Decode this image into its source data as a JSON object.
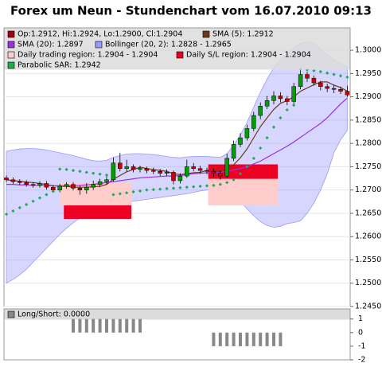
{
  "chart_data": {
    "type": "candlestick",
    "title": "Forex um Neun - Stundenchart vom 16.07.2010 09:13",
    "ylim": [
      1.245,
      1.3048
    ],
    "yticks": [
      {
        "value": 1.3,
        "label": "1.3000"
      },
      {
        "value": 1.295,
        "label": "1.2950"
      },
      {
        "value": 1.29,
        "label": "1.2900"
      },
      {
        "value": 1.285,
        "label": "1.2850"
      },
      {
        "value": 1.28,
        "label": "1.2800"
      },
      {
        "value": 1.275,
        "label": "1.2750"
      },
      {
        "value": 1.27,
        "label": "1.2700"
      },
      {
        "value": 1.265,
        "label": "1.2650"
      },
      {
        "value": 1.26,
        "label": "1.2600"
      },
      {
        "value": 1.255,
        "label": "1.2550"
      },
      {
        "value": 1.25,
        "label": "1.2500"
      },
      {
        "value": 1.245,
        "label": "1.2450"
      }
    ],
    "ohlc": {
      "name": "Op:1.2912, Hi:1.2924, Lo:1.2900, Cl:1.2904",
      "color": "#a00010",
      "up_color": "#00a000",
      "down_color": "#d00000",
      "open": [
        1.2726,
        1.2722,
        1.2718,
        1.2716,
        1.2712,
        1.271,
        1.2714,
        1.2706,
        1.27,
        1.2708,
        1.2712,
        1.2704,
        1.27,
        1.2706,
        1.2712,
        1.2718,
        1.2722,
        1.2758,
        1.2746,
        1.275,
        1.2744,
        1.2746,
        1.2742,
        1.274,
        1.2736,
        1.2738,
        1.272,
        1.273,
        1.275,
        1.2746,
        1.2742,
        1.274,
        1.2736,
        1.273,
        1.2768,
        1.2798,
        1.2812,
        1.2832,
        1.286,
        1.288,
        1.2892,
        1.2902,
        1.2896,
        1.289,
        1.2922,
        1.2948,
        1.294,
        1.293,
        1.2922,
        1.2918,
        1.2916,
        1.2912
      ],
      "high": [
        1.2731,
        1.2727,
        1.2723,
        1.2721,
        1.2717,
        1.2719,
        1.2719,
        1.2711,
        1.2713,
        1.2717,
        1.2717,
        1.2709,
        1.2715,
        1.272,
        1.2724,
        1.273,
        1.277,
        1.278,
        1.2765,
        1.2755,
        1.2752,
        1.275,
        1.2748,
        1.2745,
        1.2744,
        1.2742,
        1.2736,
        1.2765,
        1.2758,
        1.2752,
        1.2748,
        1.2746,
        1.2742,
        1.2778,
        1.2806,
        1.2822,
        1.284,
        1.2868,
        1.2888,
        1.2902,
        1.2912,
        1.291,
        1.2902,
        1.293,
        1.2958,
        1.2954,
        1.2946,
        1.2934,
        1.2928,
        1.2926,
        1.2922,
        1.2924
      ],
      "low": [
        1.2717,
        1.2713,
        1.2711,
        1.2707,
        1.2705,
        1.2705,
        1.2701,
        1.2695,
        1.2695,
        1.2703,
        1.2699,
        1.269,
        1.2692,
        1.27,
        1.2706,
        1.2712,
        1.2718,
        1.274,
        1.274,
        1.2738,
        1.2738,
        1.2736,
        1.2734,
        1.273,
        1.273,
        1.2712,
        1.2714,
        1.2726,
        1.274,
        1.2736,
        1.2734,
        1.2728,
        1.2722,
        1.2726,
        1.2762,
        1.2792,
        1.2806,
        1.2826,
        1.2852,
        1.2874,
        1.2884,
        1.2888,
        1.2882,
        1.2884,
        1.2916,
        1.2932,
        1.2924,
        1.2914,
        1.291,
        1.2908,
        1.2906,
        1.29
      ],
      "close": [
        1.2722,
        1.2718,
        1.2716,
        1.2712,
        1.271,
        1.2714,
        1.2706,
        1.27,
        1.2708,
        1.2712,
        1.2704,
        1.27,
        1.2706,
        1.2712,
        1.2718,
        1.2722,
        1.2758,
        1.2746,
        1.275,
        1.2744,
        1.2746,
        1.2742,
        1.274,
        1.2736,
        1.2738,
        1.272,
        1.273,
        1.275,
        1.2746,
        1.2742,
        1.274,
        1.2736,
        1.273,
        1.2768,
        1.2798,
        1.2812,
        1.2832,
        1.286,
        1.288,
        1.2892,
        1.2902,
        1.2896,
        1.289,
        1.2922,
        1.2948,
        1.294,
        1.293,
        1.2922,
        1.2918,
        1.2916,
        1.2912,
        1.2904
      ]
    },
    "series": [
      {
        "name": "SMA (5): 1.2912",
        "kind": "line",
        "color": "#6b3a1a",
        "values": [
          1.2722,
          1.272,
          1.2719,
          1.2717,
          1.2716,
          1.2714,
          1.2712,
          1.2709,
          1.2708,
          1.2708,
          1.2706,
          1.2706,
          1.2706,
          1.2707,
          1.2708,
          1.2712,
          1.2723,
          1.2731,
          1.2739,
          1.2744,
          1.2749,
          1.2746,
          1.2744,
          1.2742,
          1.274,
          1.2735,
          1.2733,
          1.2735,
          1.2737,
          1.2738,
          1.2742,
          1.2743,
          1.2739,
          1.2743,
          1.2754,
          1.2769,
          1.2788,
          1.2812,
          1.2836,
          1.2855,
          1.2873,
          1.2886,
          1.2892,
          1.29,
          1.2912,
          1.2919,
          1.2926,
          1.2932,
          1.2932,
          1.2925,
          1.292,
          1.2912
        ]
      },
      {
        "name": "SMA (20): 1.2897",
        "kind": "line",
        "color": "#9933dd",
        "values": [
          1.2712,
          1.2712,
          1.2711,
          1.2711,
          1.271,
          1.271,
          1.271,
          1.2709,
          1.2709,
          1.2709,
          1.2709,
          1.271,
          1.2711,
          1.2712,
          1.2714,
          1.2716,
          1.2718,
          1.272,
          1.2722,
          1.2724,
          1.2726,
          1.2727,
          1.2728,
          1.2729,
          1.273,
          1.273,
          1.2731,
          1.2733,
          1.2735,
          1.2736,
          1.2737,
          1.2737,
          1.2738,
          1.274,
          1.2743,
          1.2746,
          1.275,
          1.2756,
          1.2762,
          1.277,
          1.2778,
          1.2786,
          1.2794,
          1.2803,
          1.2813,
          1.2823,
          1.2833,
          1.2843,
          1.2855,
          1.287,
          1.2885,
          1.2897
        ]
      },
      {
        "name": "Bollinger (20, 2): 1.2828 - 1.2965",
        "kind": "band",
        "color": "#9999ff",
        "upper": [
          1.2783,
          1.2786,
          1.2788,
          1.2789,
          1.2789,
          1.2788,
          1.2786,
          1.2783,
          1.278,
          1.2777,
          1.2774,
          1.277,
          1.2766,
          1.2763,
          1.2762,
          1.2764,
          1.277,
          1.2774,
          1.2777,
          1.2778,
          1.2778,
          1.2777,
          1.2776,
          1.2774,
          1.2772,
          1.277,
          1.2769,
          1.2771,
          1.2772,
          1.2772,
          1.2772,
          1.2771,
          1.277,
          1.2778,
          1.2796,
          1.2818,
          1.2845,
          1.2878,
          1.291,
          1.2938,
          1.2962,
          1.298,
          1.2992,
          1.3005,
          1.3015,
          1.3018,
          1.3015,
          1.3002,
          1.299,
          1.298,
          1.2972,
          1.2965
        ],
        "lower": [
          1.25,
          1.2508,
          1.2518,
          1.253,
          1.2545,
          1.256,
          1.2575,
          1.259,
          1.2605,
          1.2618,
          1.263,
          1.264,
          1.265,
          1.2656,
          1.2662,
          1.2668,
          1.267,
          1.2672,
          1.2674,
          1.2676,
          1.2678,
          1.268,
          1.2682,
          1.2684,
          1.2686,
          1.2688,
          1.269,
          1.2692,
          1.2695,
          1.2698,
          1.27,
          1.2702,
          1.2705,
          1.27,
          1.269,
          1.2675,
          1.266,
          1.2645,
          1.2632,
          1.2624,
          1.262,
          1.2622,
          1.2628,
          1.263,
          1.2634,
          1.265,
          1.2672,
          1.27,
          1.2735,
          1.278,
          1.2808,
          1.2828
        ]
      },
      {
        "name": "Daily trading region: 1.2904 - 1.2904",
        "kind": "region",
        "color": "#ffcccc",
        "regions": [
          {
            "x": [
              8,
              18.7
            ],
            "y": [
              1.2667,
              1.2715
            ]
          },
          {
            "x": [
              30.2,
              40.6
            ],
            "y": [
              1.2667,
              1.2724
            ]
          }
        ]
      },
      {
        "name": "Daily S/L region: 1.2904 - 1.2904",
        "kind": "region",
        "color": "#ee0022",
        "regions": [
          {
            "x": [
              8.6,
              18.7
            ],
            "y": [
              1.2638,
              1.2667
            ]
          },
          {
            "x": [
              30.2,
              40.6
            ],
            "y": [
              1.2724,
              1.2755
            ]
          }
        ]
      },
      {
        "name": "Parabolic SAR: 1.2942",
        "kind": "dots",
        "color": "#22aa55",
        "values": [
          1.2648,
          1.2655,
          1.2662,
          1.2669,
          1.2676,
          1.2683,
          1.269,
          1.2697,
          1.2745,
          1.2744,
          1.2742,
          1.274,
          1.2738,
          1.2736,
          1.2734,
          1.2732,
          1.269,
          1.2692,
          1.2694,
          1.2696,
          1.2698,
          1.27,
          1.2701,
          1.2702,
          1.2703,
          1.2704,
          1.2705,
          1.2706,
          1.2707,
          1.2708,
          1.2709,
          1.271,
          1.2712,
          1.2716,
          1.2722,
          1.2735,
          1.275,
          1.2768,
          1.279,
          1.2812,
          1.2835,
          1.2855,
          1.2872,
          1.2882,
          1.296,
          1.2958,
          1.2956,
          1.2954,
          1.2951,
          1.2948,
          1.2945,
          1.2942
        ]
      }
    ],
    "indicator": {
      "name": "Long/Short: 0.0000",
      "color": "#888888",
      "ylim": [
        -2,
        1.74
      ],
      "yticks": [
        1,
        0,
        -1,
        -2
      ],
      "values": [
        0,
        0,
        0,
        0,
        0,
        0,
        0,
        0,
        0,
        0,
        1,
        1,
        1,
        1,
        1,
        1,
        1,
        1,
        1,
        1,
        1,
        0,
        0,
        0,
        0,
        0,
        0,
        0,
        0,
        0,
        0,
        -1,
        -1,
        -1,
        -1,
        -1,
        -1,
        -1,
        -1,
        -1,
        -1,
        -1,
        0,
        0,
        0,
        0,
        0,
        0,
        0,
        0,
        0,
        0
      ]
    }
  }
}
